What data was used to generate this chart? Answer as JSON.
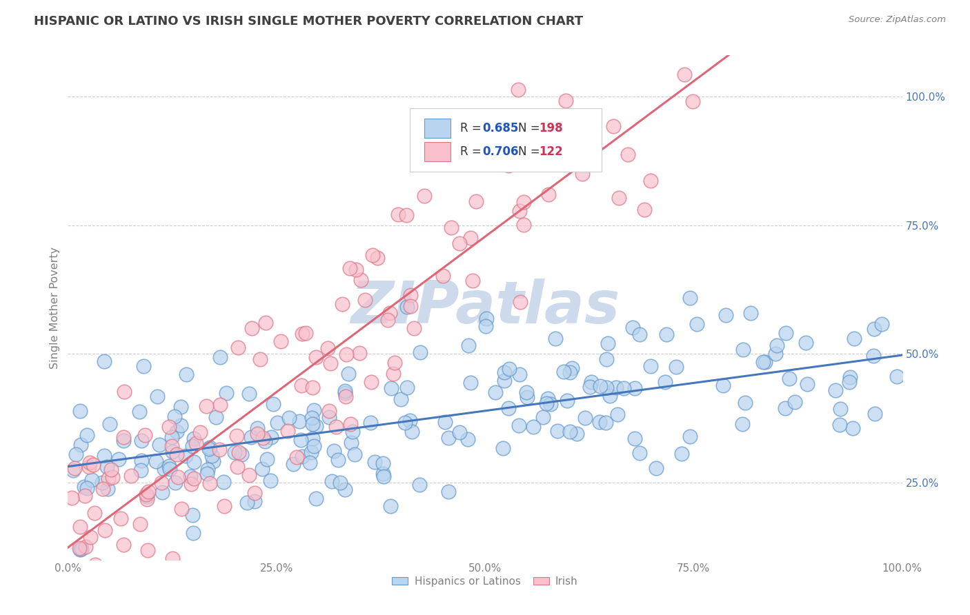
{
  "title": "HISPANIC OR LATINO VS IRISH SINGLE MOTHER POVERTY CORRELATION CHART",
  "source": "Source: ZipAtlas.com",
  "ylabel": "Single Mother Poverty",
  "xlim": [
    0.0,
    1.0
  ],
  "ylim": [
    0.1,
    1.08
  ],
  "xtick_labels": [
    "0.0%",
    "25.0%",
    "50.0%",
    "75.0%",
    "100.0%"
  ],
  "ytick_labels": [
    "25.0%",
    "50.0%",
    "75.0%",
    "100.0%"
  ],
  "ytick_positions": [
    0.25,
    0.5,
    0.75,
    1.0
  ],
  "xtick_positions": [
    0.0,
    0.25,
    0.5,
    0.75,
    1.0
  ],
  "blue_scatter_face": "#b8d4ee",
  "blue_scatter_edge": "#6699cc",
  "blue_line_color": "#4477bb",
  "pink_scatter_face": "#f8c0cc",
  "pink_scatter_edge": "#dd7788",
  "pink_line_color": "#dd6677",
  "watermark_text": "ZIPatlas",
  "watermark_color": "#ccdaeb",
  "title_color": "#404040",
  "axis_color": "#808080",
  "tick_color": "#4477bb",
  "grid_color": "#cccccc",
  "legend_r_color": "#2255bb",
  "legend_n_color": "#cc3355",
  "background_color": "#ffffff",
  "blue_r": "0.685",
  "blue_n": "198",
  "pink_r": "0.706",
  "pink_n": "122",
  "blue_label": "Hispanics or Latinos",
  "pink_label": "Irish",
  "blue_intercept": 0.3,
  "blue_slope": 0.175,
  "pink_intercept": 0.14,
  "pink_slope": 1.18
}
